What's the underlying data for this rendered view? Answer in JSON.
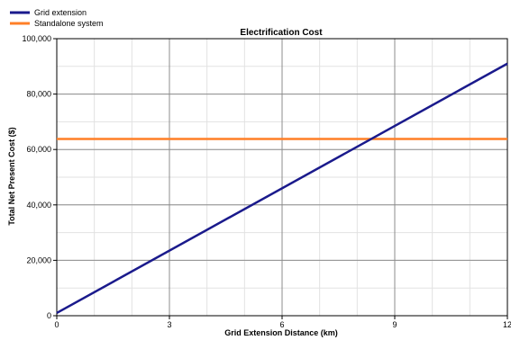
{
  "chart_data": {
    "type": "line",
    "title": "Electrification Cost",
    "xlabel": "Grid Extension Distance (km)",
    "ylabel": "Total Net Present Cost ($)",
    "xlim": [
      0,
      12
    ],
    "ylim": [
      0,
      100000
    ],
    "xticks": [
      0,
      3,
      6,
      9,
      12
    ],
    "yticks": [
      0,
      20000,
      40000,
      60000,
      80000,
      100000
    ],
    "xtick_labels": [
      "0",
      "3",
      "6",
      "9",
      "12"
    ],
    "ytick_labels": [
      "0",
      "20,000",
      "40,000",
      "60,000",
      "80,000",
      "100,000"
    ],
    "grid": true,
    "legend_position": "top-left",
    "series": [
      {
        "name": "Grid extension",
        "color": "#1a1a8c",
        "x": [
          0,
          12
        ],
        "y": [
          1000,
          91000
        ]
      },
      {
        "name": "Standalone system",
        "color": "#ff7f27",
        "x": [
          0,
          12
        ],
        "y": [
          63800,
          63800
        ]
      }
    ]
  }
}
